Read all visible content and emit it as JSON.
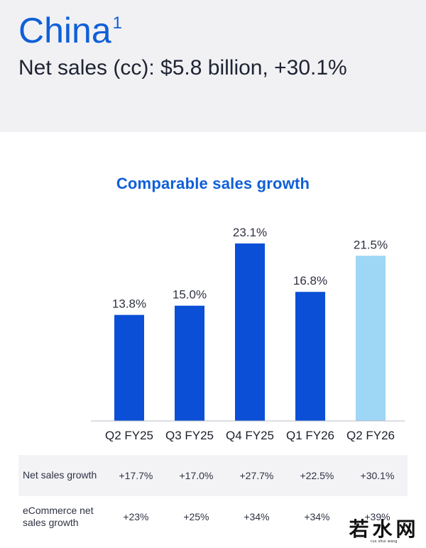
{
  "header": {
    "region": "China",
    "footnote": "1",
    "net_sales_text": "Net sales (cc): $5.8 billion, +30.1%"
  },
  "chart_data": {
    "type": "bar",
    "title": "Comparable sales growth",
    "categories": [
      "Q2 FY25",
      "Q3 FY25",
      "Q4 FY25",
      "Q1 FY26",
      "Q2 FY26"
    ],
    "values": [
      13.8,
      15.0,
      23.1,
      16.8,
      21.5
    ],
    "data_labels": [
      "13.8%",
      "15.0%",
      "23.1%",
      "16.8%",
      "21.5%"
    ],
    "xlabel": "",
    "ylabel": "",
    "ylim": [
      0,
      23.1
    ],
    "grid": false,
    "colors": [
      "#0a4fd6",
      "#0a4fd6",
      "#0a4fd6",
      "#0a4fd6",
      "#9ed6f5"
    ]
  },
  "table": {
    "rows": [
      {
        "label": "Net sales growth",
        "values": [
          "+17.7%",
          "+17.0%",
          "+27.7%",
          "+22.5%",
          "+30.1%"
        ]
      },
      {
        "label": "eCommerce net sales growth",
        "values": [
          "+23%",
          "+25%",
          "+34%",
          "+34%",
          "+39%"
        ]
      }
    ]
  },
  "watermark": {
    "text": "若水网",
    "subtext": "ruo shui wang"
  }
}
